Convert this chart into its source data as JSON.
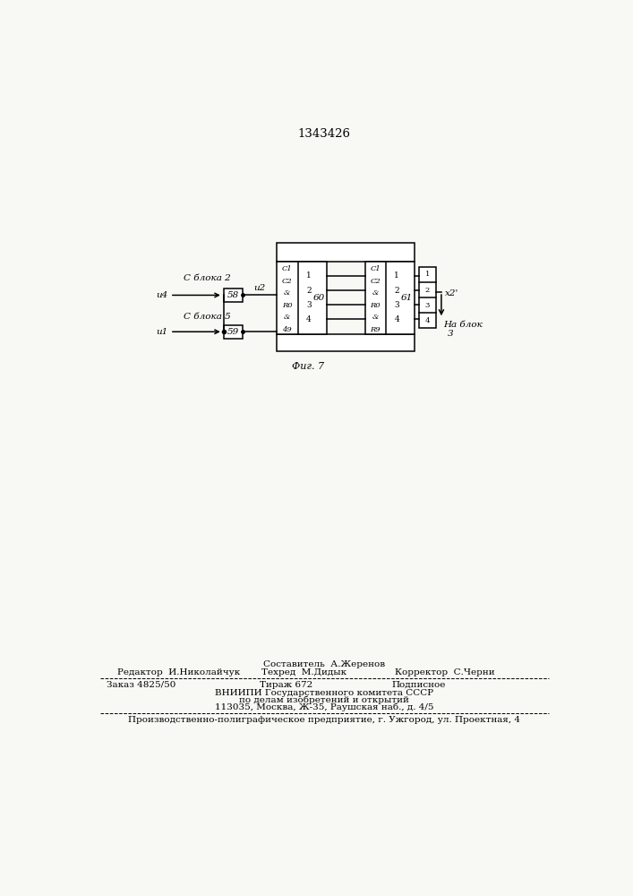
{
  "title": "1343426",
  "fig_label": "Фиг. 7",
  "bg_color": "#f8f8f4",
  "composer_line": "Составитель  А.Жеренов",
  "editor_text": "Редактор  И.Николайчук",
  "tekhred_text": "Техред  М.Дидык",
  "korrektor_text": "Корректор  С.Черни",
  "order_text": "Заказ 4825/50",
  "tirazh_text": "Тираж 672",
  "podpisnoe_text": "Подписное",
  "vnipi_line1": "ВНИИПИ Государственного комитета СССР",
  "vnipi_line2": "по делам изобретений и открытий",
  "vnipi_line3": "113035, Москва, Ж-35, Раушская наб., д. 4/5",
  "prod_line": "Производственно-полиграфическое предприятие, г. Ужгород, ул. Проектная, 4"
}
